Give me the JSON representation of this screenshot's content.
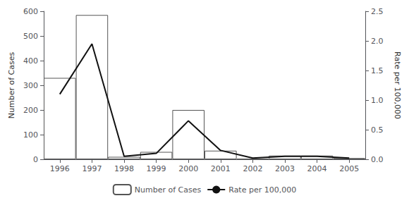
{
  "chart_data": {
    "type": "bar",
    "categories": [
      "1996",
      "1997",
      "1998",
      "1999",
      "2000",
      "2001",
      "2002",
      "2003",
      "2004",
      "2005"
    ],
    "series": [
      {
        "name": "Number of Cases",
        "type": "bar",
        "color": "#ffffff",
        "values": [
          330,
          585,
          10,
          30,
          200,
          35,
          2,
          15,
          15,
          5
        ]
      },
      {
        "name": "Rate per 100,000",
        "type": "line",
        "color": "#111111",
        "axis": "y2",
        "values": [
          1.1,
          1.95,
          0.05,
          0.1,
          0.65,
          0.15,
          0.02,
          0.05,
          0.05,
          0.02
        ]
      }
    ],
    "ylabel": "Number of Cases",
    "y2label": "Rate per 100,000",
    "ylim": [
      0,
      600
    ],
    "yticks": [
      0,
      100,
      200,
      300,
      400,
      500,
      600
    ],
    "y2lim": [
      0,
      2.5
    ],
    "y2ticks": [
      {
        "value": 0.0,
        "label": "0.0"
      },
      {
        "value": 0.5,
        "label": "0.5"
      },
      {
        "value": 1.0,
        "label": "1.0"
      },
      {
        "value": 1.5,
        "label": "1.5"
      },
      {
        "value": 2.0,
        "label": "2.0"
      },
      {
        "value": 2.5,
        "label": "2.5"
      }
    ],
    "legend": "bottom",
    "grid": false
  }
}
